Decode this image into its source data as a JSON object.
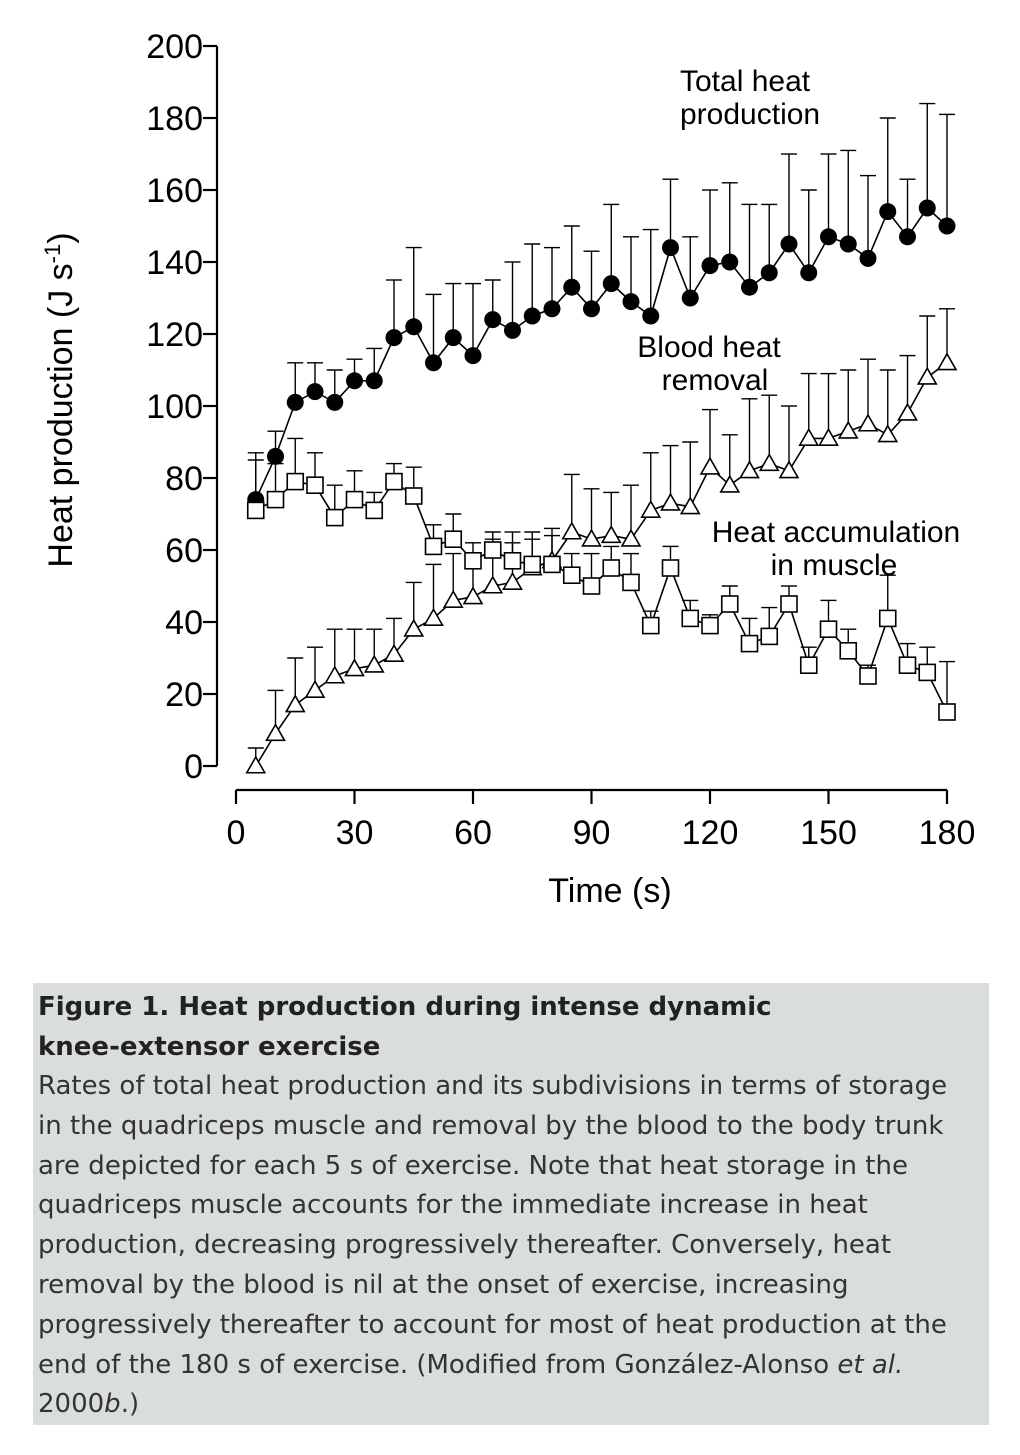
{
  "chart_data": {
    "type": "line",
    "xlabel": "Time (s)",
    "ylabel": "Heat production (J s",
    "ylabel_sup": "-1",
    "ylabel_close": ")",
    "xlim": [
      0,
      180
    ],
    "ylim": [
      0,
      200
    ],
    "x_ticks": [
      "0",
      "30",
      "60",
      "90",
      "120",
      "150",
      "180"
    ],
    "y_ticks": [
      "0",
      "20",
      "40",
      "60",
      "80",
      "100",
      "120",
      "140",
      "160",
      "180",
      "200"
    ],
    "x": [
      5,
      10,
      15,
      20,
      25,
      30,
      35,
      40,
      45,
      50,
      55,
      60,
      65,
      70,
      75,
      80,
      85,
      90,
      95,
      100,
      105,
      110,
      115,
      120,
      125,
      130,
      135,
      140,
      145,
      150,
      155,
      160,
      165,
      170,
      175,
      180
    ],
    "annotations": {
      "total": [
        "Total heat",
        "production"
      ],
      "blood": [
        "Blood heat",
        "removal"
      ],
      "muscle": [
        "Heat accumulation",
        "in muscle"
      ]
    },
    "series": [
      {
        "marker": "filled-circle",
        "values": [
          74,
          86,
          101,
          104,
          101,
          107,
          107,
          119,
          122,
          112,
          119,
          114,
          124,
          121,
          125,
          127,
          133,
          127,
          134,
          129,
          125,
          144,
          130,
          139,
          140,
          133,
          137,
          145,
          137,
          147,
          145,
          141,
          154,
          147,
          155,
          150
        ],
        "err": [
          11,
          7,
          11,
          8,
          9,
          6,
          9,
          16,
          22,
          19,
          15,
          20,
          11,
          19,
          20,
          17,
          17,
          16,
          22,
          18,
          24,
          19,
          17,
          21,
          22,
          23,
          19,
          25,
          23,
          23,
          26,
          23,
          26,
          16,
          29,
          31
        ]
      },
      {
        "marker": "open-triangle",
        "values": [
          0,
          9,
          17,
          21,
          25,
          27,
          28,
          31,
          38,
          41,
          46,
          47,
          50,
          51,
          55,
          57,
          65,
          63,
          64,
          63,
          71,
          73,
          72,
          83,
          78,
          82,
          84,
          82,
          91,
          91,
          93,
          95,
          92,
          98,
          108,
          112
        ],
        "err": [
          5,
          12,
          13,
          12,
          13,
          11,
          10,
          10,
          13,
          15,
          13,
          11,
          13,
          14,
          10,
          9,
          16,
          14,
          12,
          15,
          16,
          16,
          18,
          16,
          14,
          20,
          19,
          18,
          18,
          18,
          17,
          18,
          18,
          16,
          17,
          15
        ]
      },
      {
        "marker": "open-square",
        "values": [
          71,
          74,
          79,
          78,
          69,
          74,
          71,
          79,
          75,
          61,
          63,
          57,
          60,
          57,
          56,
          56,
          53,
          50,
          55,
          51,
          39,
          55,
          41,
          39,
          45,
          34,
          36,
          45,
          28,
          38,
          32,
          25,
          41,
          28,
          26,
          15
        ],
        "err": [
          16,
          10,
          12,
          9,
          9,
          8,
          5,
          5,
          8,
          6,
          7,
          5,
          5,
          5,
          7,
          8,
          6,
          9,
          6,
          8,
          4,
          6,
          5,
          3,
          5,
          7,
          8,
          5,
          5,
          8,
          6,
          3,
          12,
          6,
          7,
          14
        ]
      }
    ]
  },
  "caption": {
    "title_line1": "Figure 1.  Heat production during intense dynamic",
    "title_line2": "knee-extensor exercise",
    "body_lines": [
      "Rates of total heat production and its subdivisions in terms of storage",
      "in the quadriceps muscle and removal by the blood to the body trunk",
      "are depicted for each 5 s of exercise. Note that heat storage in the",
      "quadriceps muscle accounts for the immediate increase in heat",
      "production, decreasing progressively thereafter. Conversely, heat",
      "removal by the blood is nil at the onset of exercise, increasing",
      "progressively thereafter to account for most of heat production at the"
    ],
    "line8_pre": "end of the 180 s of exercise. (Modified from González-Alonso ",
    "line8_italic": "et al.",
    "line9_pre": "2000",
    "line9_italic": "b",
    "line9_post": ".)"
  }
}
